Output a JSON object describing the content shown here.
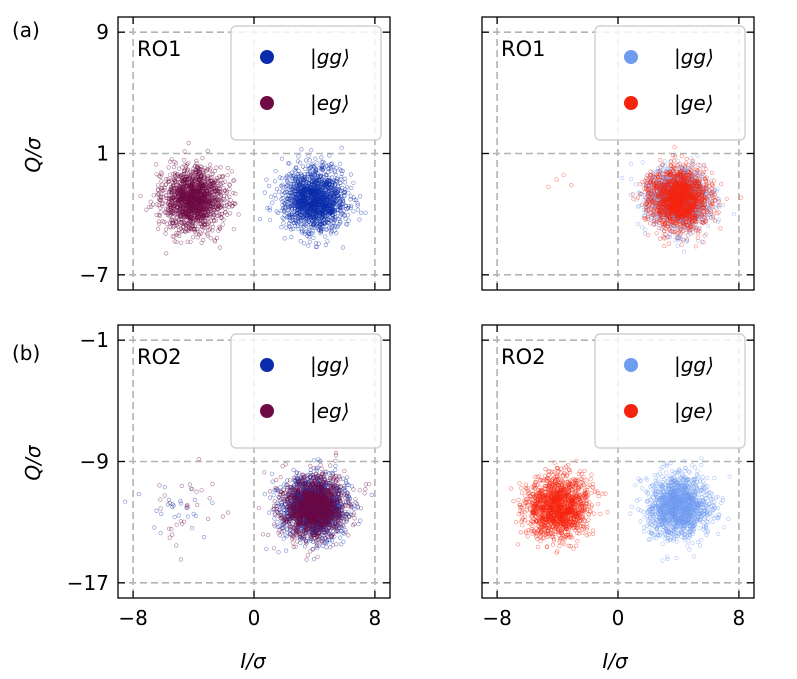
{
  "figure": {
    "row_labels": [
      "(a)",
      "(b)"
    ],
    "x_label": "I/σ",
    "y_label": "Q/σ"
  },
  "chart_data": [
    {
      "type": "scatter",
      "panel": "a-left",
      "readout": "RO1",
      "xlim": [
        -9,
        9
      ],
      "ylim": [
        -8,
        10
      ],
      "xticks": [
        -8,
        0,
        8
      ],
      "yticks": [
        9,
        1,
        -7
      ],
      "xtick_labels": [
        "",
        "",
        ""
      ],
      "ytick_labels": [
        "9",
        "1",
        "−7"
      ],
      "xlabel": "",
      "ylabel": "Q/σ",
      "grid": true,
      "grid_at": {
        "x": [
          -8,
          0,
          8
        ],
        "y": [
          9,
          1,
          -7
        ]
      },
      "legend_placement": "top-right",
      "series": [
        {
          "name": "|gg⟩",
          "color": "#0a2bab",
          "clusters": [
            {
              "cx": 4.0,
              "cy": -2.0,
              "sigma": 1.0,
              "n": 1600
            }
          ]
        },
        {
          "name": "|eg⟩",
          "color": "#6e0a44",
          "clusters": [
            {
              "cx": -4.0,
              "cy": -2.0,
              "sigma": 1.0,
              "n": 1600
            }
          ]
        }
      ]
    },
    {
      "type": "scatter",
      "panel": "a-right",
      "readout": "RO1",
      "xlim": [
        -9,
        9
      ],
      "ylim": [
        -8,
        10
      ],
      "xticks": [
        -8,
        0,
        8
      ],
      "yticks": [
        9,
        1,
        -7
      ],
      "xtick_labels": [
        "",
        "",
        ""
      ],
      "ytick_labels": [
        "",
        "",
        ""
      ],
      "xlabel": "",
      "ylabel": "",
      "grid": true,
      "grid_at": {
        "x": [
          -8,
          0,
          8
        ],
        "y": [
          9,
          1,
          -7
        ]
      },
      "legend_placement": "top-right",
      "series": [
        {
          "name": "|gg⟩",
          "color": "#6f9bf0",
          "clusters": [
            {
              "cx": 4.0,
              "cy": -2.0,
              "sigma": 1.0,
              "n": 1500
            }
          ]
        },
        {
          "name": "|ge⟩",
          "color": "#f5240e",
          "clusters": [
            {
              "cx": 4.0,
              "cy": -2.0,
              "sigma": 1.0,
              "n": 1600
            },
            {
              "cx": -4.0,
              "cy": -1.5,
              "sigma": 0.9,
              "n": 4
            }
          ]
        }
      ]
    },
    {
      "type": "scatter",
      "panel": "b-left",
      "readout": "RO2",
      "xlim": [
        -9,
        9
      ],
      "ylim": [
        -18,
        0
      ],
      "xticks": [
        -8,
        0,
        8
      ],
      "yticks": [
        -1,
        -9,
        -17
      ],
      "xtick_labels": [
        "−8",
        "0",
        "8"
      ],
      "ytick_labels": [
        "−1",
        "−9",
        "−17"
      ],
      "xlabel": "I/σ",
      "ylabel": "Q/σ",
      "grid": true,
      "grid_at": {
        "x": [
          -8,
          0,
          8
        ],
        "y": [
          -1,
          -9,
          -17
        ]
      },
      "legend_placement": "top-right",
      "series": [
        {
          "name": "|gg⟩",
          "color": "#0a2bab",
          "clusters": [
            {
              "cx": 4.0,
              "cy": -12.0,
              "sigma": 1.0,
              "n": 1500
            },
            {
              "cx": -4.5,
              "cy": -12.5,
              "sigma": 1.3,
              "n": 25
            }
          ]
        },
        {
          "name": "|eg⟩",
          "color": "#6e0a44",
          "clusters": [
            {
              "cx": 4.0,
              "cy": -12.0,
              "sigma": 1.0,
              "n": 1500
            },
            {
              "cx": -4.5,
              "cy": -12.5,
              "sigma": 1.3,
              "n": 30
            }
          ]
        }
      ]
    },
    {
      "type": "scatter",
      "panel": "b-right",
      "readout": "RO2",
      "xlim": [
        -9,
        9
      ],
      "ylim": [
        -18,
        0
      ],
      "xticks": [
        -8,
        0,
        8
      ],
      "yticks": [
        -1,
        -9,
        -17
      ],
      "xtick_labels": [
        "−8",
        "0",
        "8"
      ],
      "ytick_labels": [
        "",
        "",
        ""
      ],
      "xlabel": "I/σ",
      "ylabel": "",
      "grid": true,
      "grid_at": {
        "x": [
          -8,
          0,
          8
        ],
        "y": [
          -1,
          -9,
          -17
        ]
      },
      "legend_placement": "top-right",
      "series": [
        {
          "name": "|gg⟩",
          "color": "#6f9bf0",
          "clusters": [
            {
              "cx": 4.0,
              "cy": -12.0,
              "sigma": 1.0,
              "n": 1500
            }
          ]
        },
        {
          "name": "|ge⟩",
          "color": "#f5240e",
          "clusters": [
            {
              "cx": -4.0,
              "cy": -12.0,
              "sigma": 1.0,
              "n": 1500
            }
          ]
        }
      ]
    }
  ]
}
